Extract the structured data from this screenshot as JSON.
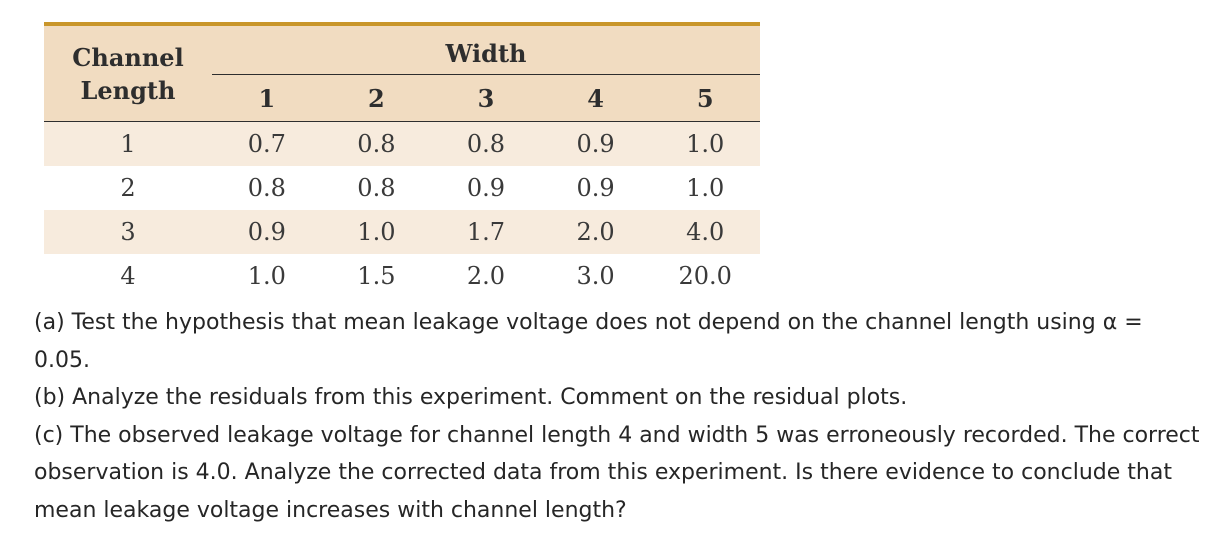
{
  "table": {
    "corner_header_line1": "Channel",
    "corner_header_line2": "Length",
    "group_header": "Width",
    "columns": [
      "1",
      "2",
      "3",
      "4",
      "5"
    ],
    "rows": [
      {
        "label": "1",
        "values": [
          "0.7",
          "0.8",
          "0.8",
          "0.9",
          "1.0"
        ]
      },
      {
        "label": "2",
        "values": [
          "0.8",
          "0.8",
          "0.9",
          "0.9",
          "1.0"
        ]
      },
      {
        "label": "3",
        "values": [
          "0.9",
          "1.0",
          "1.7",
          "2.0",
          "4.0"
        ]
      },
      {
        "label": "4",
        "values": [
          "1.0",
          "1.5",
          "2.0",
          "3.0",
          "20.0"
        ]
      }
    ]
  },
  "questions": {
    "a": "(a) Test the hypothesis that mean leakage voltage does not depend on the channel length using α = 0.05.",
    "b": "(b) Analyze the residuals from this experiment. Comment on the residual plots.",
    "c": "(c) The observed leakage voltage for channel length 4 and width 5 was erroneously recorded. The correct observation is 4.0. Analyze the corrected data from this experiment. Is there evidence to conclude that mean leakage voltage increases with channel length?"
  }
}
